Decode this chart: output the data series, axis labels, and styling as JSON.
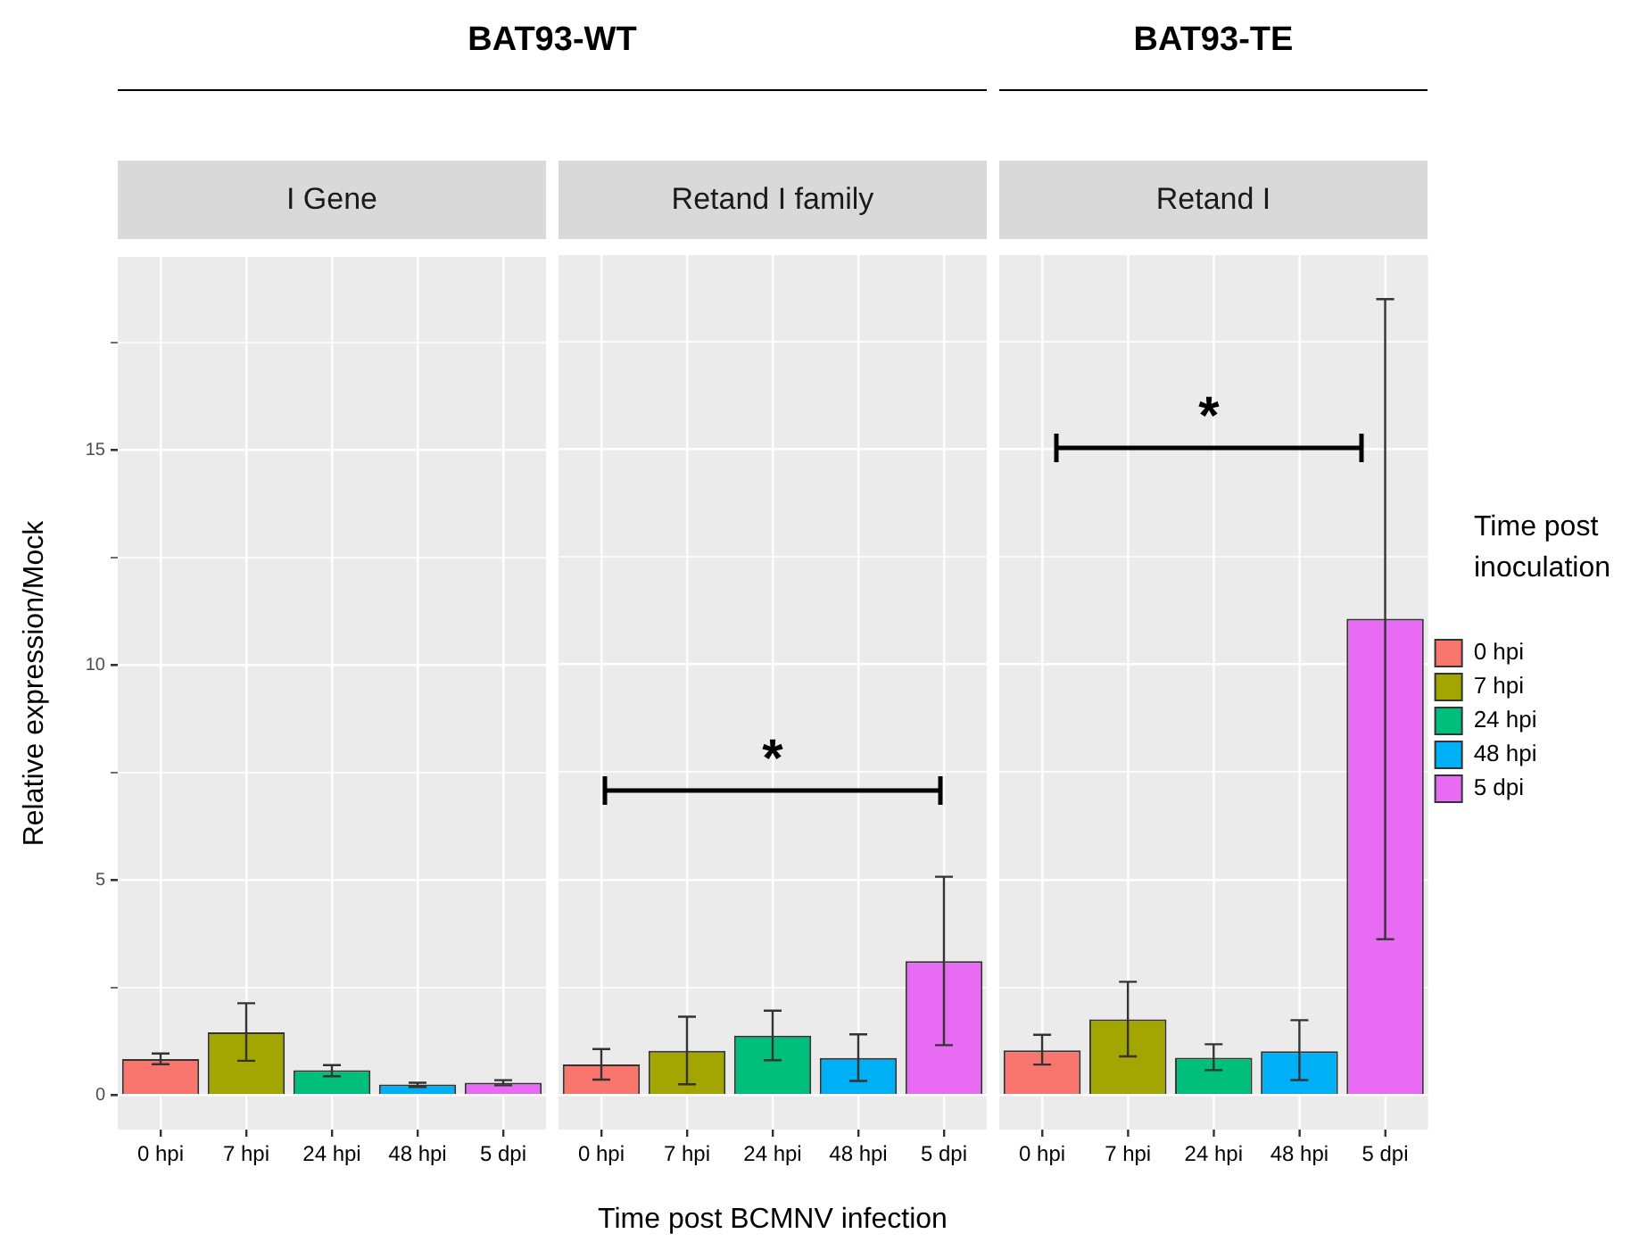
{
  "chart_data": [
    {
      "type": "bar",
      "title": "BAT93-WT",
      "subtitle": "I Gene",
      "ylabel": "Relative expression/Mock",
      "categories": [
        "0 hpi",
        "7 hpi",
        "24 hpi",
        "48 hpi",
        "5 dpi"
      ],
      "series": [
        {
          "color": "#f8766d",
          "values": [
            0.84,
            null,
            null,
            null,
            null
          ],
          "errors": [
            [
              0.72,
              0.97
            ],
            null,
            null,
            null,
            null
          ]
        },
        {
          "color": "#a3a500",
          "values": [
            null,
            1.46,
            null,
            null,
            null
          ],
          "errors": [
            null,
            [
              0.8,
              2.14
            ],
            null,
            null,
            null
          ]
        },
        {
          "color": "#00bf7d",
          "values": [
            null,
            null,
            0.58,
            null,
            null
          ],
          "errors": [
            null,
            null,
            [
              0.44,
              0.7
            ],
            null,
            null
          ]
        },
        {
          "color": "#00b0f6",
          "values": [
            null,
            null,
            null,
            0.25,
            null
          ],
          "errors": [
            null,
            null,
            null,
            [
              0.19,
              0.29
            ],
            null
          ]
        },
        {
          "color": "#e76bf3",
          "values": [
            null,
            null,
            null,
            null,
            0.29
          ],
          "errors": [
            null,
            null,
            null,
            null,
            [
              0.23,
              0.35
            ]
          ]
        }
      ],
      "ylim": [
        -0.8,
        19.5
      ],
      "yticks": [
        0,
        {
          "value": 2.5,
          "label": null
        },
        5,
        {
          "value": 7.5,
          "label": null
        },
        10,
        {
          "value": 12.5,
          "label": null
        },
        15,
        {
          "value": 17.5,
          "label": null
        }
      ],
      "grid": true
    },
    {
      "type": "bar",
      "subtitle": "Retand I family",
      "xlabel": "Time post BCMNV infection",
      "categories": [
        "0 hpi",
        "7 hpi",
        "24 hpi",
        "48 hpi",
        "5 dpi"
      ],
      "series": [
        {
          "color": "#f8766d",
          "values": [
            0.71,
            null,
            null,
            null,
            null
          ],
          "errors": [
            [
              0.36,
              1.07
            ],
            null,
            null,
            null,
            null
          ]
        },
        {
          "color": "#a3a500",
          "values": [
            null,
            1.03,
            null,
            null,
            null
          ],
          "errors": [
            null,
            [
              0.25,
              1.82
            ],
            null,
            null,
            null
          ]
        },
        {
          "color": "#00bf7d",
          "values": [
            null,
            null,
            1.38,
            null,
            null
          ],
          "errors": [
            null,
            null,
            [
              0.81,
              1.96
            ],
            null,
            null
          ]
        },
        {
          "color": "#00b0f6",
          "values": [
            null,
            null,
            null,
            0.86,
            null
          ],
          "errors": [
            null,
            null,
            null,
            [
              0.33,
              1.41
            ],
            null
          ]
        },
        {
          "color": "#e76bf3",
          "values": [
            null,
            null,
            null,
            null,
            3.11
          ],
          "errors": [
            null,
            null,
            null,
            null,
            [
              1.16,
              5.07
            ]
          ]
        }
      ],
      "annotations": [
        "*"
      ],
      "ylim": [
        -0.8,
        19.5
      ],
      "yticks": [
        0,
        {
          "value": 2.5,
          "label": null
        },
        5,
        {
          "value": 7.5,
          "label": null
        },
        10,
        {
          "value": 12.5,
          "label": null
        },
        15,
        {
          "value": 17.5,
          "label": null
        }
      ],
      "grid": true,
      "tick_labels": "x"
    },
    {
      "type": "bar",
      "title": "BAT93-TE",
      "subtitle": "Retand I",
      "legend_title": "Time post inoculation",
      "legend": "right",
      "categories": [
        "0 hpi",
        "7 hpi",
        "24 hpi",
        "48 hpi",
        "5 dpi"
      ],
      "series": [
        {
          "name": "0 hpi",
          "color": "#f8766d",
          "values": [
            1.04,
            null,
            null,
            null,
            null
          ],
          "errors": [
            [
              0.71,
              1.4
            ],
            null,
            null,
            null,
            null
          ]
        },
        {
          "name": "7 hpi",
          "color": "#a3a500",
          "values": [
            null,
            1.76,
            null,
            null,
            null
          ],
          "errors": [
            null,
            [
              0.9,
              2.63
            ],
            null,
            null,
            null
          ]
        },
        {
          "name": "24 hpi",
          "color": "#00bf7d",
          "values": [
            null,
            null,
            0.87,
            null,
            null
          ],
          "errors": [
            null,
            null,
            [
              0.58,
              1.18
            ],
            null,
            null
          ]
        },
        {
          "name": "48 hpi",
          "color": "#00b0f6",
          "values": [
            null,
            null,
            null,
            1.02,
            null
          ],
          "errors": [
            null,
            null,
            null,
            [
              0.35,
              1.74
            ],
            null
          ]
        },
        {
          "name": "5 dpi",
          "color": "#e76bf3",
          "values": [
            null,
            null,
            null,
            null,
            11.06
          ],
          "errors": [
            null,
            null,
            null,
            null,
            [
              3.62,
              18.48
            ]
          ]
        }
      ],
      "annotations": [
        "*"
      ],
      "ylim": [
        -0.8,
        19.5
      ],
      "yticks": [
        0,
        {
          "value": 2.5,
          "label": null
        },
        5,
        {
          "value": 7.5,
          "label": null
        },
        10,
        {
          "value": 12.5,
          "label": null
        },
        15,
        {
          "value": 17.5,
          "label": null
        }
      ],
      "grid": true,
      "tick_labels": "x"
    }
  ]
}
